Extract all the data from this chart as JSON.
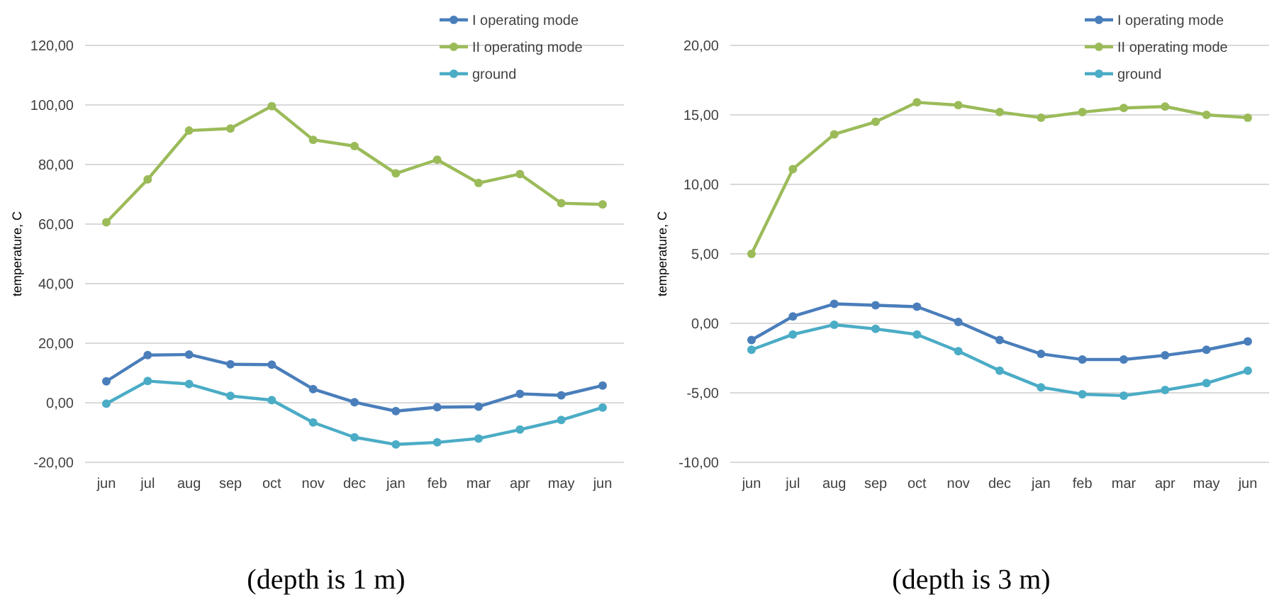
{
  "chart_data": [
    {
      "type": "line",
      "ylabel": "temperature, C",
      "categories": [
        "jun",
        "jul",
        "aug",
        "sep",
        "oct",
        "nov",
        "dec",
        "jan",
        "feb",
        "mar",
        "apr",
        "may",
        "jun"
      ],
      "series": [
        {
          "name": "I operating mode",
          "color": "#4a7ebb",
          "values": [
            7.2,
            16,
            16.2,
            12.9,
            12.8,
            4.6,
            0.2,
            -2.8,
            -1.5,
            -1.3,
            3,
            2.5,
            5.8
          ]
        },
        {
          "name": "II operating mode",
          "color": "#9bbb59",
          "values": [
            60.6,
            75,
            91.4,
            92.1,
            99.6,
            88.3,
            86.2,
            77,
            81.6,
            73.8,
            76.8,
            67,
            66.6
          ]
        },
        {
          "name": "ground",
          "color": "#4bacc6",
          "values": [
            -0.3,
            7.3,
            6.3,
            2.3,
            0.9,
            -6.6,
            -11.6,
            -14,
            -13.3,
            -12,
            -9,
            -5.8,
            -1.6
          ]
        }
      ],
      "ylim": [
        -20,
        120
      ],
      "yticks": [
        {
          "value": -20,
          "label": "-20,00"
        },
        {
          "value": 0,
          "label": "0,00"
        },
        {
          "value": 20,
          "label": "20,00"
        },
        {
          "value": 40,
          "label": "40,00"
        },
        {
          "value": 60,
          "label": "60,00"
        },
        {
          "value": 80,
          "label": "80,00"
        },
        {
          "value": 100,
          "label": "100,00"
        },
        {
          "value": 120,
          "label": "120,00"
        }
      ],
      "grid": "y",
      "legend": "top right",
      "marker": "circle",
      "line_style": "solid",
      "annotations": [
        "(depth is 1 m)"
      ]
    },
    {
      "type": "line",
      "ylabel": "temperature, C",
      "categories": [
        "jun",
        "jul",
        "aug",
        "sep",
        "oct",
        "nov",
        "dec",
        "jan",
        "feb",
        "mar",
        "apr",
        "may",
        "jun"
      ],
      "series": [
        {
          "name": "I operating mode",
          "color": "#4a7ebb",
          "values": [
            -1.2,
            0.5,
            1.4,
            1.3,
            1.2,
            0.1,
            -1.2,
            -2.2,
            -2.6,
            -2.6,
            -2.3,
            -1.9,
            -1.3
          ]
        },
        {
          "name": "II operating mode",
          "color": "#9bbb59",
          "values": [
            5,
            11.1,
            13.6,
            14.5,
            15.9,
            15.7,
            15.2,
            14.8,
            15.2,
            15.5,
            15.6,
            15,
            14.8
          ]
        },
        {
          "name": "ground",
          "color": "#4bacc6",
          "values": [
            -1.9,
            -0.8,
            -0.1,
            -0.4,
            -0.8,
            -2,
            -3.4,
            -4.6,
            -5.1,
            -5.2,
            -4.8,
            -4.3,
            -3.4
          ]
        }
      ],
      "ylim": [
        -10,
        20
      ],
      "yticks": [
        {
          "value": -10,
          "label": "-10,00"
        },
        {
          "value": -5,
          "label": "-5,00"
        },
        {
          "value": 0,
          "label": "0,00"
        },
        {
          "value": 5,
          "label": "5,00"
        },
        {
          "value": 10,
          "label": "10,00"
        },
        {
          "value": 15,
          "label": "15,00"
        },
        {
          "value": 20,
          "label": "20,00"
        }
      ],
      "grid": "y",
      "legend": "top right",
      "marker": "circle",
      "line_style": "solid",
      "annotations": [
        "(depth is 3 m)"
      ]
    }
  ]
}
